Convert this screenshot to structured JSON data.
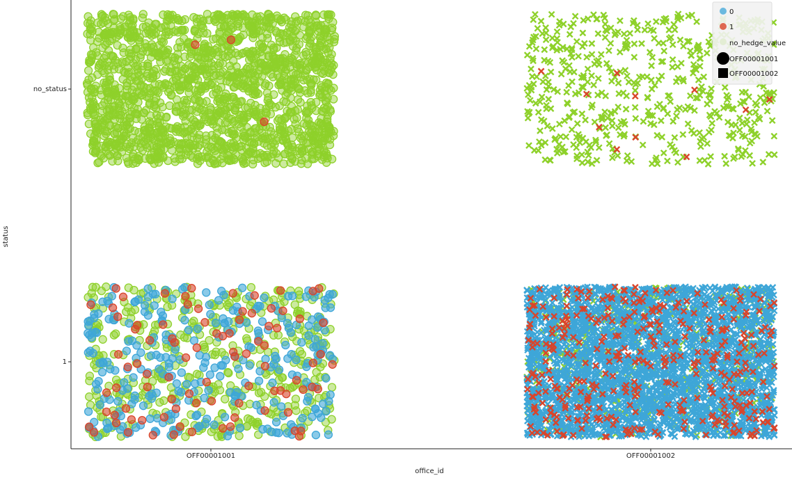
{
  "chart_data": {
    "type": "scatter",
    "subtype": "categorical jitter / strip plot",
    "xlabel": "office_id",
    "ylabel": "status",
    "x_categories": [
      "OFF00001001",
      "OFF00001002"
    ],
    "y_categories": [
      "no_status",
      "1"
    ],
    "hue": {
      "entries": [
        {
          "label": "0",
          "color": "#3ea6d8"
        },
        {
          "label": "1",
          "color": "#d9452b"
        },
        {
          "label": "no_hedge_value",
          "color": "#8ed12a"
        }
      ]
    },
    "style": {
      "entries": [
        {
          "label": "OFF00001001",
          "marker": "circle"
        },
        {
          "label": "OFF00001002",
          "marker": "square"
        }
      ],
      "rendered_marker_for_OFF00001002": "x"
    },
    "groups": [
      {
        "office_id": "OFF00001001",
        "status": "no_status",
        "approx_counts": {
          "0": 0,
          "1": 3,
          "no_hedge_value": 1700
        }
      },
      {
        "office_id": "OFF00001002",
        "status": "no_status",
        "approx_counts": {
          "0": 0,
          "1": 18,
          "no_hedge_value": 900
        }
      },
      {
        "office_id": "OFF00001001",
        "status": "1",
        "approx_counts": {
          "0": 300,
          "1": 90,
          "no_hedge_value": 460
        }
      },
      {
        "office_id": "OFF00001002",
        "status": "1",
        "approx_counts": {
          "0": 5200,
          "1": 600,
          "no_hedge_value": 900
        }
      }
    ],
    "grid": false,
    "legend_position": "top-right"
  }
}
